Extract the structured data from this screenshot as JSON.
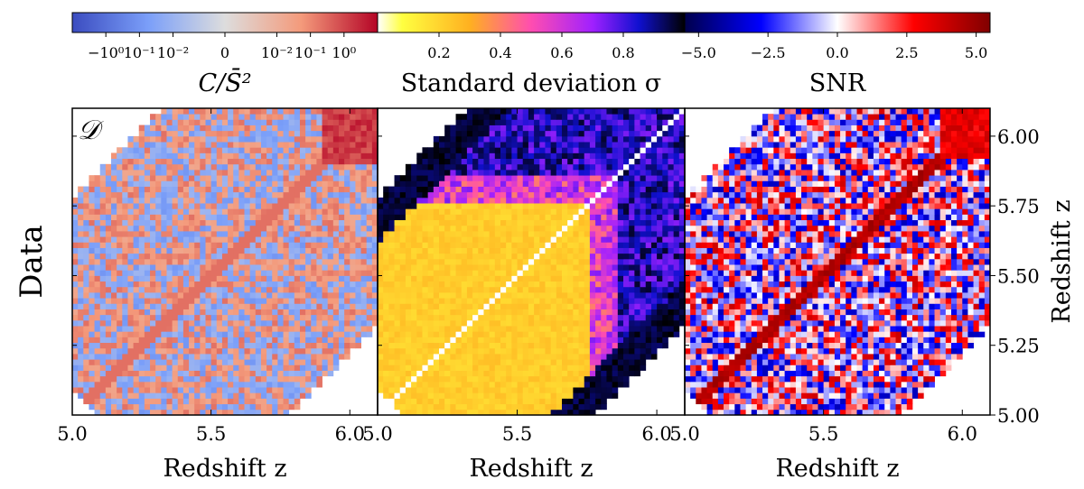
{
  "chart_data": [
    {
      "type": "heatmap",
      "name": "covariance-normalized",
      "row_label": "Data",
      "panel_tag": "𝒟",
      "colorbar": {
        "label": "C/S̄²",
        "colormap": "coolwarm",
        "ticks": [
          "−10⁰",
          "10⁻¹",
          "10⁻²",
          "0",
          "10⁻²",
          "10⁻¹",
          "10⁰"
        ]
      },
      "xlabel": "Redshift z",
      "xlim": [
        5.0,
        6.1
      ],
      "xticks": [
        "5.0",
        "5.5",
        "6.0"
      ],
      "ylim": [
        5.0,
        6.1
      ]
    },
    {
      "type": "heatmap",
      "name": "standard-deviation",
      "colorbar": {
        "label": "Standard deviation σ",
        "colormap": "gnuplot2_r",
        "range": [
          0.0,
          1.0
        ],
        "ticks": [
          "0.2",
          "0.4",
          "0.6",
          "0.8"
        ]
      },
      "xlabel": "Redshift z",
      "xlim": [
        5.0,
        6.1
      ],
      "xticks": [
        "5.0",
        "5.5",
        "6.0"
      ],
      "ylim": [
        5.0,
        6.1
      ]
    },
    {
      "type": "heatmap",
      "name": "snr",
      "colorbar": {
        "label": "SNR",
        "colormap": "seismic",
        "range": [
          -5.5,
          5.5
        ],
        "ticks": [
          "−5.0",
          "−2.5",
          "0.0",
          "2.5",
          "5.0"
        ]
      },
      "xlabel": "Redshift z",
      "xlim": [
        5.0,
        6.1
      ],
      "xticks": [
        "5.0",
        "5.5",
        "6.0"
      ],
      "ylabel": "Redshift z",
      "ylim": [
        5.0,
        6.1
      ],
      "yticks": [
        "5.00",
        "5.25",
        "5.50",
        "5.75",
        "6.00"
      ]
    }
  ]
}
